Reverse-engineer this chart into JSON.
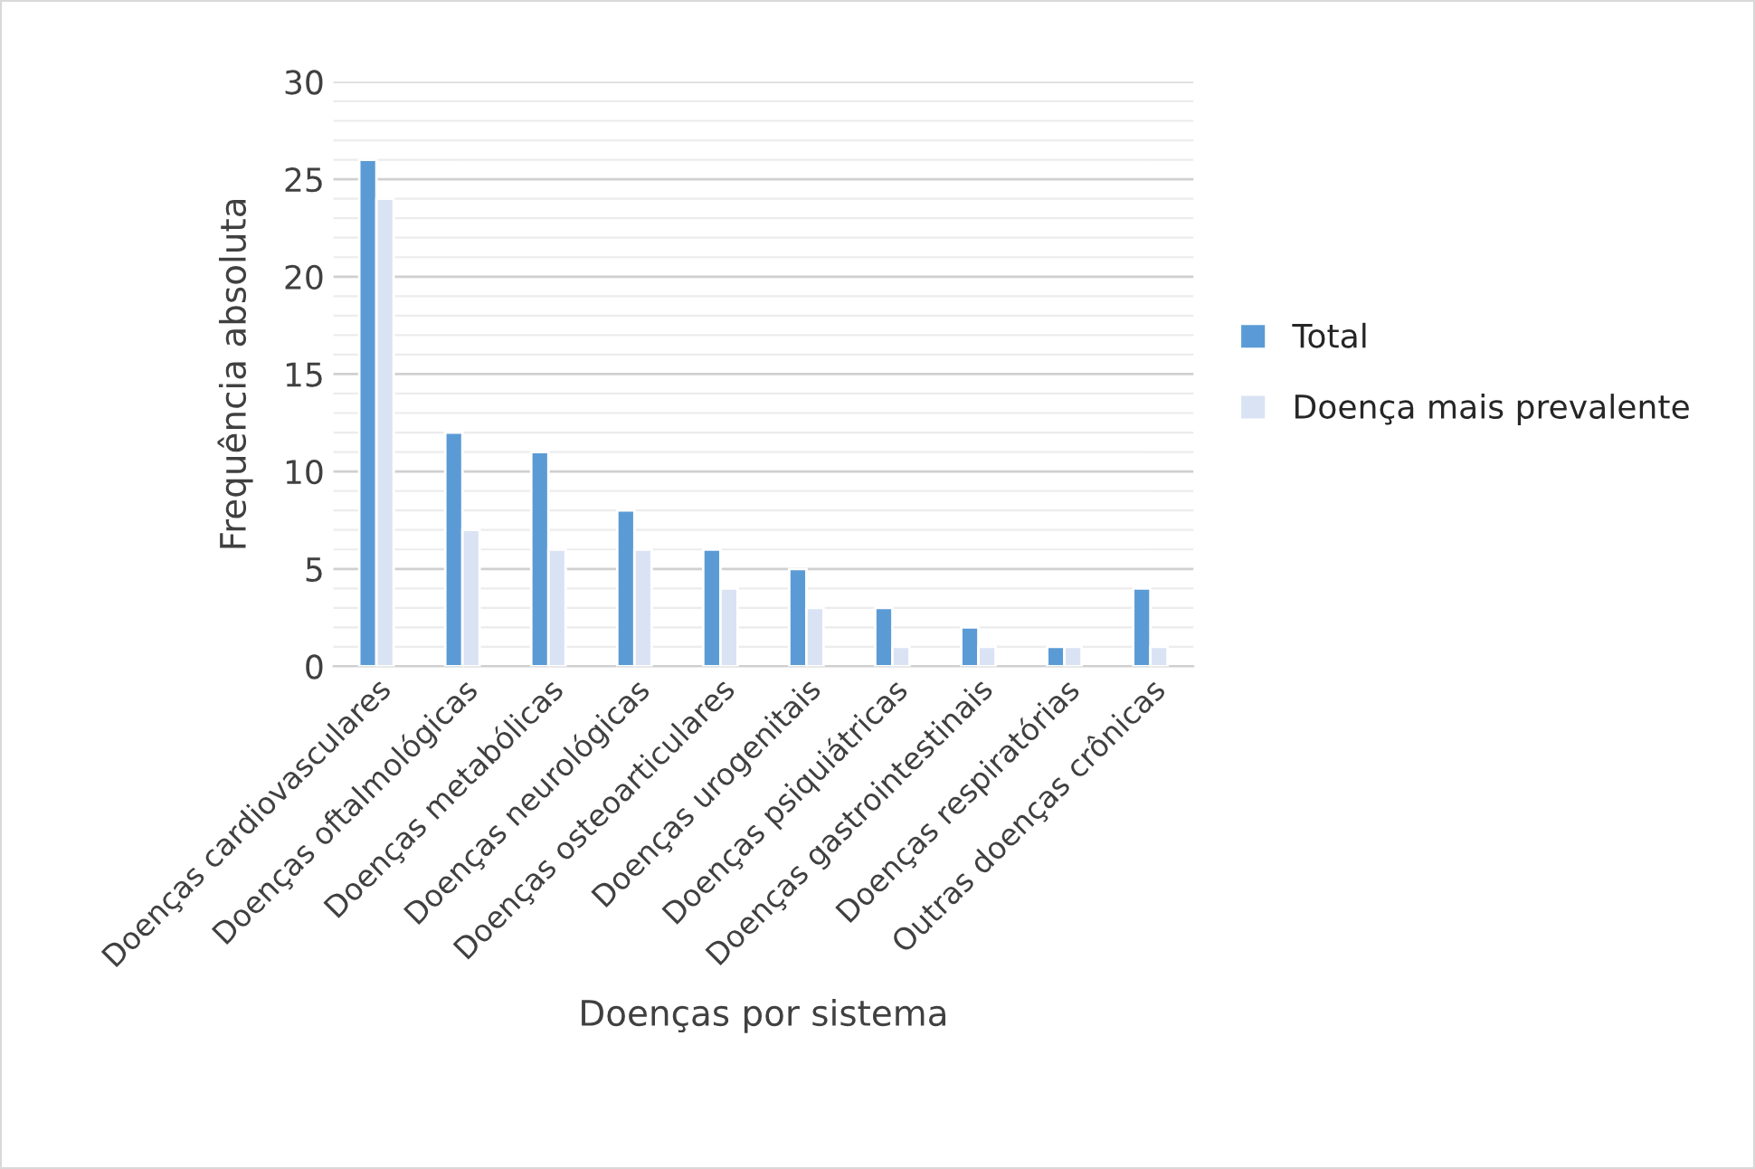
{
  "chart_data": {
    "type": "bar",
    "xlabel": "Doenças por sistema",
    "ylabel": "Frequência absoluta",
    "categories": [
      "Doenças cardiovasculares",
      "Doenças oftalmológicas",
      "Doenças metabólicas",
      "Doenças neurológicas",
      "Doenças osteoarticulares",
      "Doenças urogenitais",
      "Doenças psiquiátricas",
      "Doenças gastrointestinais",
      "Doenças respiratórias",
      "Outras doenças crônicas"
    ],
    "series": [
      {
        "name": "Total",
        "color": "#5b9bd5",
        "values": [
          26,
          12,
          11,
          8,
          6,
          5,
          3,
          2,
          1,
          4
        ]
      },
      {
        "name": "Doença mais prevalente",
        "color": "#dae3f3",
        "values": [
          24,
          7,
          6,
          6,
          4,
          3,
          1,
          1,
          1,
          1
        ]
      }
    ],
    "ylim": [
      0,
      30
    ],
    "yticks": [
      0,
      5,
      10,
      15,
      20,
      25,
      30
    ],
    "grid": "y",
    "legend": "right"
  }
}
